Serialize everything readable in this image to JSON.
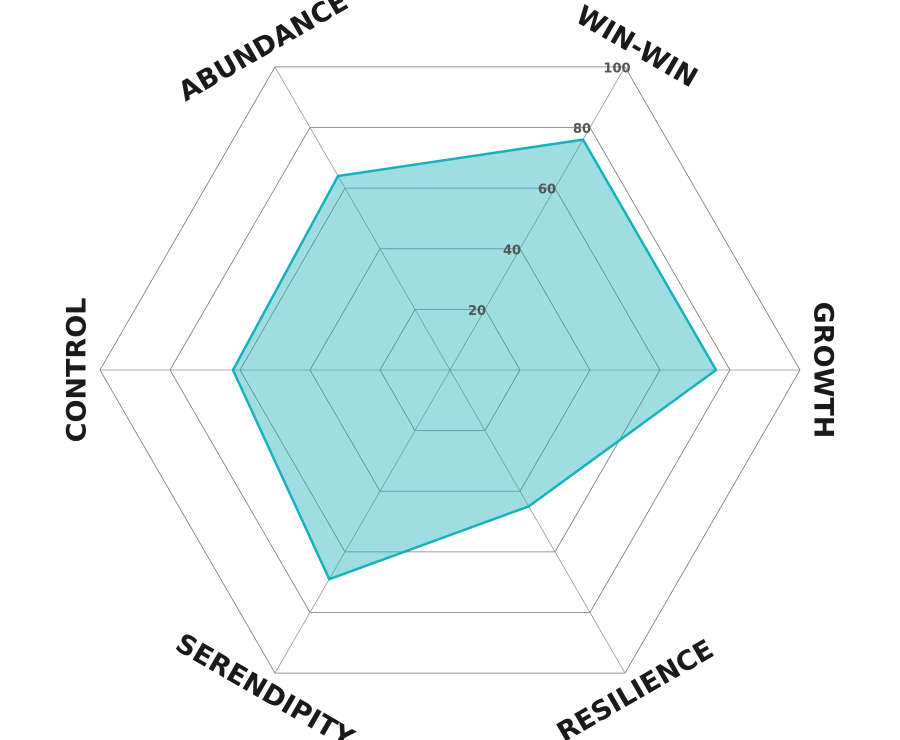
{
  "chart_data": {
    "type": "radar",
    "categories": [
      "WIN-WIN",
      "GROWTH",
      "RESILIENCE",
      "SERENDIPITY",
      "CONTROL",
      "ABUNDANCE"
    ],
    "values": [
      76,
      76,
      45,
      69,
      62,
      64
    ],
    "color": "#17b0bd",
    "rlim": [
      0,
      100
    ],
    "rticks": [
      20,
      40,
      60,
      80,
      100
    ],
    "grid": true
  }
}
